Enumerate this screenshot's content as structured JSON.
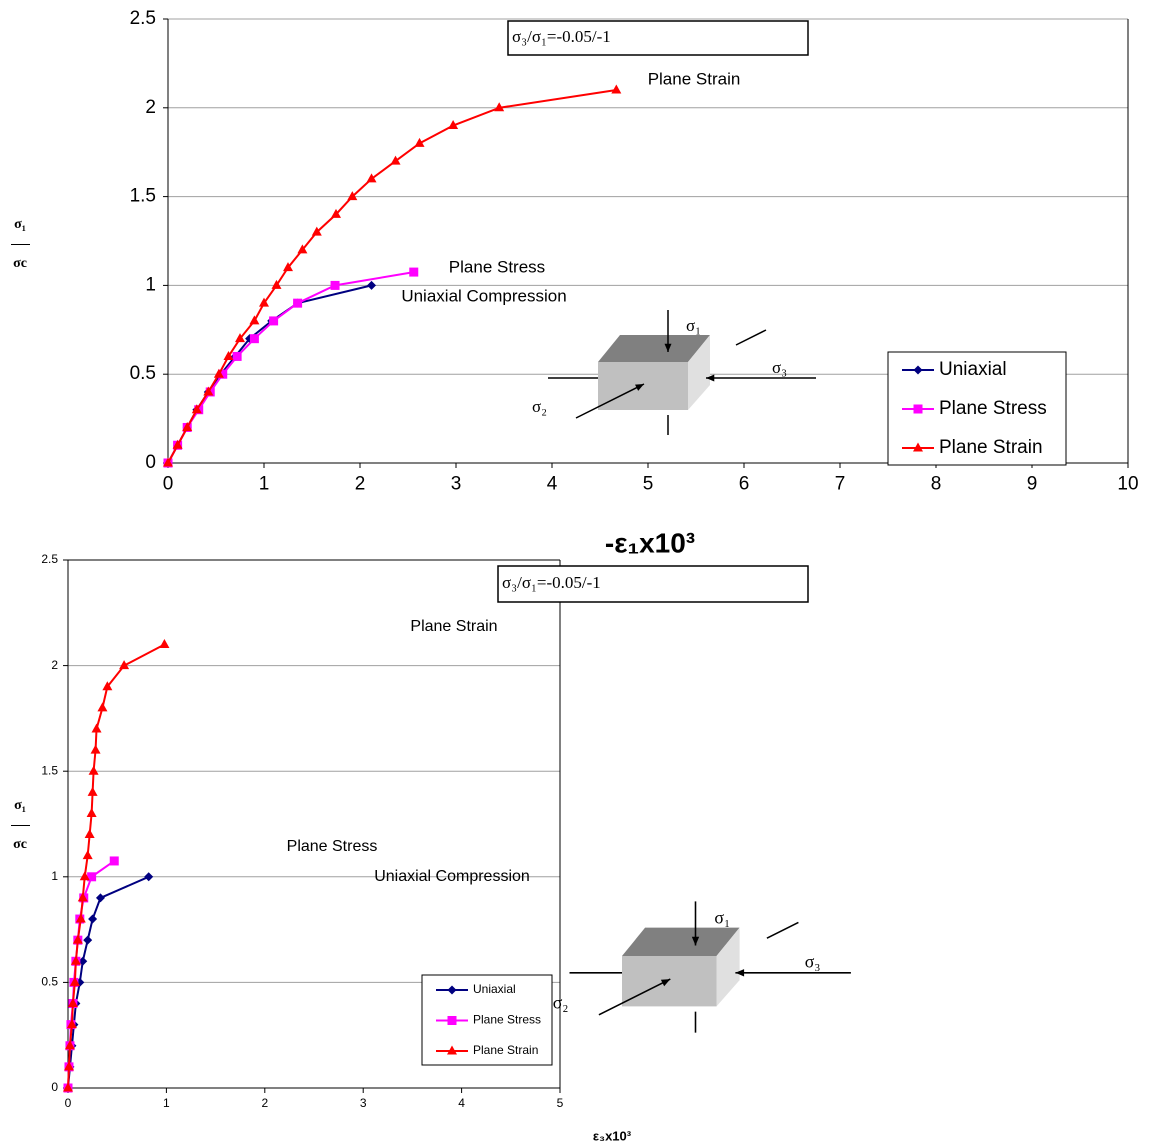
{
  "chart_data": [
    {
      "type": "line",
      "xlabel": "-ε₁x10³",
      "ylabel": [
        "σ₁",
        "σc"
      ],
      "annotation_box": "σ₃/σ₁=-0.05/-1",
      "curve_labels": [
        "Plane Strain",
        "Plane Stress",
        "Uniaxial Compression"
      ],
      "diagram_labels": [
        "σ₁",
        "σ₂",
        "σ₃"
      ],
      "xlim": [
        0,
        10
      ],
      "xticks": [
        0,
        1,
        2,
        3,
        4,
        5,
        6,
        7,
        8,
        9,
        10
      ],
      "ylim": [
        0,
        2.5
      ],
      "yticks": [
        0,
        0.5,
        1,
        1.5,
        2,
        2.5
      ],
      "grid": true,
      "legend": "lower right",
      "series": [
        {
          "name": "Uniaxial",
          "color": "#000080",
          "marker": "diamond",
          "x": [
            0,
            0.1,
            0.2,
            0.3,
            0.42,
            0.55,
            0.7,
            0.85,
            1.08,
            1.35,
            2.12
          ],
          "values": [
            0,
            0.1,
            0.2,
            0.3,
            0.4,
            0.5,
            0.6,
            0.7,
            0.8,
            0.9,
            1.0
          ]
        },
        {
          "name": "Plane Stress",
          "color": "#ff00ff",
          "marker": "square",
          "x": [
            0,
            0.1,
            0.2,
            0.32,
            0.44,
            0.57,
            0.72,
            0.9,
            1.1,
            1.35,
            1.74,
            2.56
          ],
          "values": [
            0,
            0.1,
            0.2,
            0.3,
            0.4,
            0.5,
            0.6,
            0.7,
            0.8,
            0.9,
            1.0,
            1.075
          ]
        },
        {
          "name": "Plane Strain",
          "color": "#ff0000",
          "marker": "triangle",
          "x": [
            0,
            0.1,
            0.2,
            0.3,
            0.42,
            0.53,
            0.63,
            0.75,
            0.9,
            1.0,
            1.13,
            1.25,
            1.4,
            1.55,
            1.75,
            1.92,
            2.12,
            2.37,
            2.62,
            2.97,
            3.45,
            4.67
          ],
          "values": [
            0,
            0.1,
            0.2,
            0.3,
            0.4,
            0.5,
            0.6,
            0.7,
            0.8,
            0.9,
            1.0,
            1.1,
            1.2,
            1.3,
            1.4,
            1.5,
            1.6,
            1.7,
            1.8,
            1.9,
            2.0,
            2.1
          ]
        }
      ]
    },
    {
      "type": "line",
      "xlabel": "ε₃x10³",
      "ylabel": [
        "σ₁",
        "σc"
      ],
      "annotation_box": "σ₃/σ₁=-0.05/-1",
      "curve_labels": [
        "Plane Strain",
        "Plane Stress",
        "Uniaxial Compression"
      ],
      "diagram_labels": [
        "σ₁",
        "σ₂",
        "σ₃"
      ],
      "xlim": [
        0,
        5
      ],
      "xticks": [
        0,
        1,
        2,
        3,
        4,
        5
      ],
      "ylim": [
        0,
        2.5
      ],
      "yticks": [
        0,
        0.5,
        1,
        1.5,
        2,
        2.5
      ],
      "grid": true,
      "legend": "lower right",
      "series": [
        {
          "name": "Uniaxial",
          "color": "#000080",
          "marker": "diamond",
          "x": [
            0,
            0.02,
            0.04,
            0.06,
            0.08,
            0.12,
            0.15,
            0.2,
            0.25,
            0.33,
            0.82
          ],
          "values": [
            0,
            0.1,
            0.2,
            0.3,
            0.4,
            0.5,
            0.6,
            0.7,
            0.8,
            0.9,
            1.0
          ]
        },
        {
          "name": "Plane Stress",
          "color": "#ff00ff",
          "marker": "square",
          "x": [
            0,
            0.01,
            0.02,
            0.03,
            0.05,
            0.06,
            0.08,
            0.1,
            0.12,
            0.16,
            0.24,
            0.47
          ],
          "values": [
            0,
            0.1,
            0.2,
            0.3,
            0.4,
            0.5,
            0.6,
            0.7,
            0.8,
            0.9,
            1.0,
            1.075
          ]
        },
        {
          "name": "Plane Strain",
          "color": "#ff0000",
          "marker": "triangle",
          "x": [
            0,
            0.01,
            0.02,
            0.04,
            0.05,
            0.07,
            0.08,
            0.1,
            0.13,
            0.15,
            0.17,
            0.2,
            0.22,
            0.24,
            0.25,
            0.26,
            0.28,
            0.29,
            0.35,
            0.4,
            0.57,
            0.98
          ],
          "values": [
            0,
            0.1,
            0.2,
            0.3,
            0.4,
            0.5,
            0.6,
            0.7,
            0.8,
            0.9,
            1.0,
            1.1,
            1.2,
            1.3,
            1.4,
            1.5,
            1.6,
            1.7,
            1.8,
            1.9,
            2.0,
            2.1
          ]
        }
      ]
    }
  ]
}
